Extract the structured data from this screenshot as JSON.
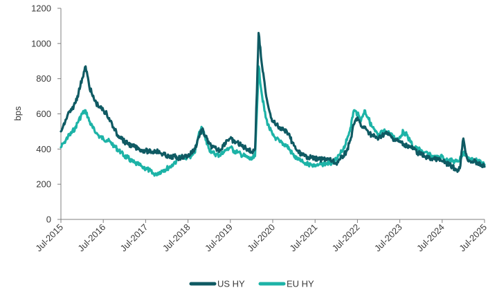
{
  "chart_data": {
    "type": "line",
    "title": "",
    "xlabel": "",
    "ylabel": "bps",
    "ylim": [
      0,
      1200
    ],
    "yticks": [
      0,
      200,
      400,
      600,
      800,
      1000,
      1200
    ],
    "xlim": [
      "Jul-2015",
      "Jul-2025"
    ],
    "xticks": [
      "Jul-2015",
      "Jul-2016",
      "Jul-2017",
      "Jul-2018",
      "Jul-2019",
      "Jul-2020",
      "Jul-2021",
      "Jul-2022",
      "Jul-2023",
      "Jul-2024",
      "Jul-2025"
    ],
    "grid": false,
    "legend_position": "bottom-center",
    "x": [
      "2015-07",
      "2015-08",
      "2015-09",
      "2015-10",
      "2015-11",
      "2015-12",
      "2016-01",
      "2016-02",
      "2016-03",
      "2016-04",
      "2016-05",
      "2016-06",
      "2016-07",
      "2016-08",
      "2016-09",
      "2016-10",
      "2016-11",
      "2016-12",
      "2017-01",
      "2017-02",
      "2017-03",
      "2017-04",
      "2017-05",
      "2017-06",
      "2017-07",
      "2017-08",
      "2017-09",
      "2017-10",
      "2017-11",
      "2017-12",
      "2018-01",
      "2018-02",
      "2018-03",
      "2018-04",
      "2018-05",
      "2018-06",
      "2018-07",
      "2018-08",
      "2018-09",
      "2018-10",
      "2018-11",
      "2018-12",
      "2019-01",
      "2019-02",
      "2019-03",
      "2019-04",
      "2019-05",
      "2019-06",
      "2019-07",
      "2019-08",
      "2019-09",
      "2019-10",
      "2019-11",
      "2019-12",
      "2020-01",
      "2020-02",
      "2020-03",
      "2020-04",
      "2020-05",
      "2020-06",
      "2020-07",
      "2020-08",
      "2020-09",
      "2020-10",
      "2020-11",
      "2020-12",
      "2021-01",
      "2021-02",
      "2021-03",
      "2021-04",
      "2021-05",
      "2021-06",
      "2021-07",
      "2021-08",
      "2021-09",
      "2021-10",
      "2021-11",
      "2021-12",
      "2022-01",
      "2022-02",
      "2022-03",
      "2022-04",
      "2022-05",
      "2022-06",
      "2022-07",
      "2022-08",
      "2022-09",
      "2022-10",
      "2022-11",
      "2022-12",
      "2023-01",
      "2023-02",
      "2023-03",
      "2023-04",
      "2023-05",
      "2023-06",
      "2023-07",
      "2023-08",
      "2023-09",
      "2023-10",
      "2023-11",
      "2023-12",
      "2024-01",
      "2024-02",
      "2024-03",
      "2024-04",
      "2024-05",
      "2024-06",
      "2024-07",
      "2024-08",
      "2024-09",
      "2024-10",
      "2024-11",
      "2024-12",
      "2025-01",
      "2025-02",
      "2025-03",
      "2025-04",
      "2025-05",
      "2025-06",
      "2025-07"
    ],
    "series": [
      {
        "name": "US HY",
        "color": "#0f5a63",
        "values": [
          500,
          540,
          600,
          620,
          660,
          720,
          800,
          870,
          760,
          700,
          660,
          640,
          620,
          600,
          560,
          520,
          480,
          470,
          440,
          430,
          420,
          410,
          400,
          395,
          390,
          385,
          385,
          390,
          380,
          370,
          360,
          350,
          360,
          350,
          350,
          360,
          360,
          380,
          400,
          470,
          510,
          470,
          430,
          410,
          400,
          395,
          420,
          450,
          460,
          440,
          440,
          420,
          410,
          400,
          380,
          400,
          1060,
          870,
          720,
          620,
          560,
          540,
          520,
          510,
          500,
          460,
          420,
          390,
          370,
          360,
          355,
          350,
          345,
          340,
          340,
          345,
          340,
          330,
          320,
          340,
          360,
          390,
          450,
          540,
          580,
          530,
          520,
          500,
          480,
          470,
          460,
          480,
          490,
          480,
          460,
          450,
          440,
          430,
          420,
          410,
          400,
          380,
          370,
          360,
          350,
          345,
          340,
          340,
          330,
          320,
          310,
          300,
          280,
          290,
          460,
          350,
          330,
          330,
          320,
          310,
          300
        ]
      },
      {
        "name": "EU HY",
        "color": "#1db3a7",
        "values": [
          410,
          440,
          470,
          490,
          520,
          560,
          600,
          620,
          560,
          520,
          490,
          470,
          460,
          450,
          440,
          420,
          400,
          380,
          360,
          350,
          330,
          320,
          310,
          300,
          290,
          280,
          260,
          260,
          270,
          280,
          290,
          300,
          320,
          340,
          350,
          350,
          355,
          360,
          380,
          480,
          520,
          450,
          400,
          380,
          370,
          365,
          380,
          400,
          410,
          390,
          380,
          370,
          360,
          350,
          340,
          360,
          870,
          700,
          580,
          520,
          480,
          460,
          440,
          430,
          420,
          390,
          360,
          340,
          330,
          320,
          315,
          310,
          310,
          310,
          315,
          320,
          320,
          320,
          340,
          370,
          400,
          450,
          520,
          620,
          600,
          560,
          620,
          580,
          530,
          500,
          470,
          500,
          500,
          490,
          470,
          460,
          470,
          500,
          480,
          440,
          410,
          400,
          390,
          380,
          370,
          360,
          350,
          350,
          360,
          340,
          340,
          330,
          330,
          340,
          380,
          360,
          340,
          340,
          330,
          320,
          310
        ]
      }
    ]
  }
}
